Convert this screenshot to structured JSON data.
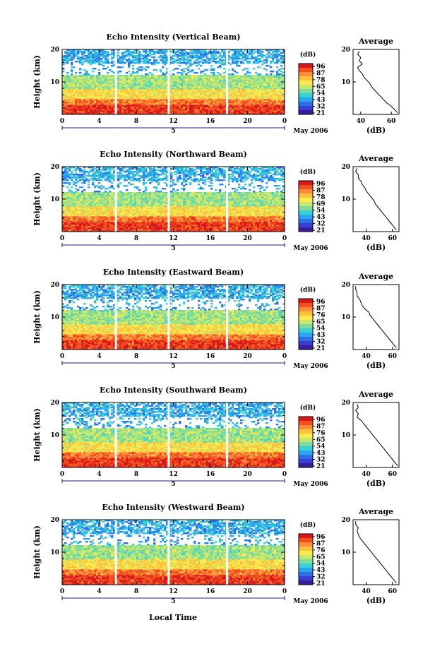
{
  "figure": {
    "bottom_xlabel": "Local Time",
    "date_label": "May 2006",
    "ylabel": "Height (km)",
    "colorbar_unit": "(dB)",
    "average_title": "Average",
    "average_xlabel": "(dB)",
    "day_label": "5"
  },
  "colorbar": {
    "ticks": [
      "96",
      "87",
      "78",
      "65",
      "54",
      "43",
      "32",
      "21"
    ],
    "colors": [
      "#d7191c",
      "#f4501e",
      "#fd8d3c",
      "#fdc23e",
      "#fee94f",
      "#c6e96b",
      "#7ddc9b",
      "#3bd0d6",
      "#28a7f0",
      "#2f6fe6",
      "#3a3fd1",
      "#3a1c9c"
    ]
  },
  "chart_data": [
    {
      "type": "heatmap",
      "title": "Echo Intensity (Vertical Beam)",
      "xlabel": "",
      "ylabel": "Height (km)",
      "xlim": [
        0,
        24
      ],
      "ylim": [
        0,
        20
      ],
      "xticks": [
        "0",
        "4",
        "8",
        "12",
        "16",
        "20",
        "0"
      ],
      "yticks": [
        "10",
        "20"
      ],
      "colorbar_ticks": [
        "96",
        "87",
        "78",
        "65",
        "54",
        "43",
        "32",
        "21"
      ],
      "data_gaps_hours": [
        5.8,
        11.5,
        17.8
      ],
      "average_profile": {
        "xticks": [
          "40",
          "60"
        ],
        "xlim": [
          35,
          65
        ],
        "points": [
          [
            39,
            19.5
          ],
          [
            38,
            18.5
          ],
          [
            40,
            17.5
          ],
          [
            39,
            16.5
          ],
          [
            41,
            15.5
          ],
          [
            38,
            14.5
          ],
          [
            39,
            13.5
          ],
          [
            41,
            12.5
          ],
          [
            42,
            11.5
          ],
          [
            44,
            10.5
          ],
          [
            46,
            9.5
          ],
          [
            47,
            8.5
          ],
          [
            49,
            7.5
          ],
          [
            51,
            6.5
          ],
          [
            53,
            5.5
          ],
          [
            55,
            4.5
          ],
          [
            57,
            3.5
          ],
          [
            60,
            2.5
          ],
          [
            62,
            1.5
          ],
          [
            64,
            0.5
          ]
        ]
      }
    },
    {
      "type": "heatmap",
      "title": "Echo Intensity (Northward Beam)",
      "xlabel": "",
      "ylabel": "Height (km)",
      "xlim": [
        0,
        24
      ],
      "ylim": [
        0,
        20
      ],
      "xticks": [
        "0",
        "4",
        "8",
        "12",
        "16",
        "20",
        "0"
      ],
      "yticks": [
        "10",
        "20"
      ],
      "colorbar_ticks": [
        "96",
        "87",
        "78",
        "69",
        "54",
        "43",
        "32",
        "21"
      ],
      "data_gaps_hours": [
        5.8,
        11.5,
        17.8
      ],
      "average_profile": {
        "xticks": [
          "40",
          "60"
        ],
        "xlim": [
          30,
          65
        ],
        "points": [
          [
            33,
            19.5
          ],
          [
            32,
            18.5
          ],
          [
            34,
            17.5
          ],
          [
            34,
            16.5
          ],
          [
            36,
            15.5
          ],
          [
            37,
            14.5
          ],
          [
            39,
            13.5
          ],
          [
            40,
            12.5
          ],
          [
            42,
            11.5
          ],
          [
            44,
            10.5
          ],
          [
            46,
            9.5
          ],
          [
            47,
            8.5
          ],
          [
            49,
            7.5
          ],
          [
            51,
            6.5
          ],
          [
            53,
            5.5
          ],
          [
            55,
            4.5
          ],
          [
            57,
            3.5
          ],
          [
            59,
            2.5
          ],
          [
            61,
            1.5
          ],
          [
            63,
            0.5
          ]
        ]
      }
    },
    {
      "type": "heatmap",
      "title": "Echo Intensity (Eastward Beam)",
      "xlabel": "",
      "ylabel": "Height (km)",
      "xlim": [
        0,
        24
      ],
      "ylim": [
        0,
        20
      ],
      "xticks": [
        "0",
        "4",
        "8",
        "12",
        "16",
        "20",
        "0"
      ],
      "yticks": [
        "10",
        "20"
      ],
      "colorbar_ticks": [
        "96",
        "87",
        "76",
        "65",
        "54",
        "43",
        "32",
        "21"
      ],
      "data_gaps_hours": [
        5.8,
        11.5,
        17.8
      ],
      "average_profile": {
        "xticks": [
          "40",
          "60"
        ],
        "xlim": [
          30,
          65
        ],
        "points": [
          [
            32,
            19.5
          ],
          [
            32,
            18.5
          ],
          [
            33,
            17.5
          ],
          [
            33,
            16.5
          ],
          [
            35,
            15.5
          ],
          [
            36,
            14.5
          ],
          [
            37,
            13.5
          ],
          [
            39,
            12.5
          ],
          [
            42,
            11.5
          ],
          [
            43,
            10.5
          ],
          [
            45,
            9.5
          ],
          [
            47,
            8.5
          ],
          [
            49,
            7.5
          ],
          [
            51,
            6.5
          ],
          [
            53,
            5.5
          ],
          [
            55,
            4.5
          ],
          [
            57,
            3.5
          ],
          [
            59,
            2.5
          ],
          [
            61,
            1.5
          ],
          [
            63,
            0.5
          ]
        ]
      }
    },
    {
      "type": "heatmap",
      "title": "Echo Intensity (Southward Beam)",
      "xlabel": "",
      "ylabel": "Height (km)",
      "xlim": [
        0,
        24
      ],
      "ylim": [
        0,
        20
      ],
      "xticks": [
        "0",
        "4",
        "8",
        "12",
        "16",
        "20",
        "0"
      ],
      "yticks": [
        "10",
        "20"
      ],
      "colorbar_ticks": [
        "96",
        "87",
        "76",
        "65",
        "54",
        "43",
        "32",
        "21"
      ],
      "data_gaps_hours": [
        5.8,
        11.5,
        17.8
      ],
      "average_profile": {
        "xticks": [
          "40",
          "60"
        ],
        "xlim": [
          30,
          65
        ],
        "points": [
          [
            33,
            19.5
          ],
          [
            34,
            18.5
          ],
          [
            32,
            17.5
          ],
          [
            34,
            16.5
          ],
          [
            33,
            15.5
          ],
          [
            36,
            14.5
          ],
          [
            38,
            13.5
          ],
          [
            40,
            12.5
          ],
          [
            42,
            11.5
          ],
          [
            44,
            10.5
          ],
          [
            46,
            9.5
          ],
          [
            48,
            8.5
          ],
          [
            50,
            7.5
          ],
          [
            52,
            6.5
          ],
          [
            54,
            5.5
          ],
          [
            56,
            4.5
          ],
          [
            58,
            3.5
          ],
          [
            60,
            2.5
          ],
          [
            62,
            1.5
          ],
          [
            64,
            0.5
          ]
        ]
      }
    },
    {
      "type": "heatmap",
      "title": "Echo Intensity (Westward Beam)",
      "xlabel": "Local Time",
      "ylabel": "Height (km)",
      "xlim": [
        0,
        24
      ],
      "ylim": [
        0,
        20
      ],
      "xticks": [
        "0",
        "4",
        "8",
        "12",
        "16",
        "20",
        "0"
      ],
      "yticks": [
        "10",
        "20"
      ],
      "colorbar_ticks": [
        "96",
        "87",
        "76",
        "65",
        "54",
        "43",
        "32",
        "21"
      ],
      "data_gaps_hours": [
        5.8,
        11.5,
        17.8
      ],
      "average_profile": {
        "xticks": [
          "40",
          "60"
        ],
        "xlim": [
          30,
          65
        ],
        "points": [
          [
            32,
            19.5
          ],
          [
            32,
            18.5
          ],
          [
            34,
            17.5
          ],
          [
            33,
            16.5
          ],
          [
            34,
            15.5
          ],
          [
            35,
            14.5
          ],
          [
            37,
            13.5
          ],
          [
            39,
            12.5
          ],
          [
            41,
            11.5
          ],
          [
            43,
            10.5
          ],
          [
            45,
            9.5
          ],
          [
            47,
            8.5
          ],
          [
            49,
            7.5
          ],
          [
            51,
            6.5
          ],
          [
            53,
            5.5
          ],
          [
            55,
            4.5
          ],
          [
            57,
            3.5
          ],
          [
            59,
            2.5
          ],
          [
            61,
            1.5
          ],
          [
            63,
            0.5
          ]
        ]
      }
    }
  ]
}
